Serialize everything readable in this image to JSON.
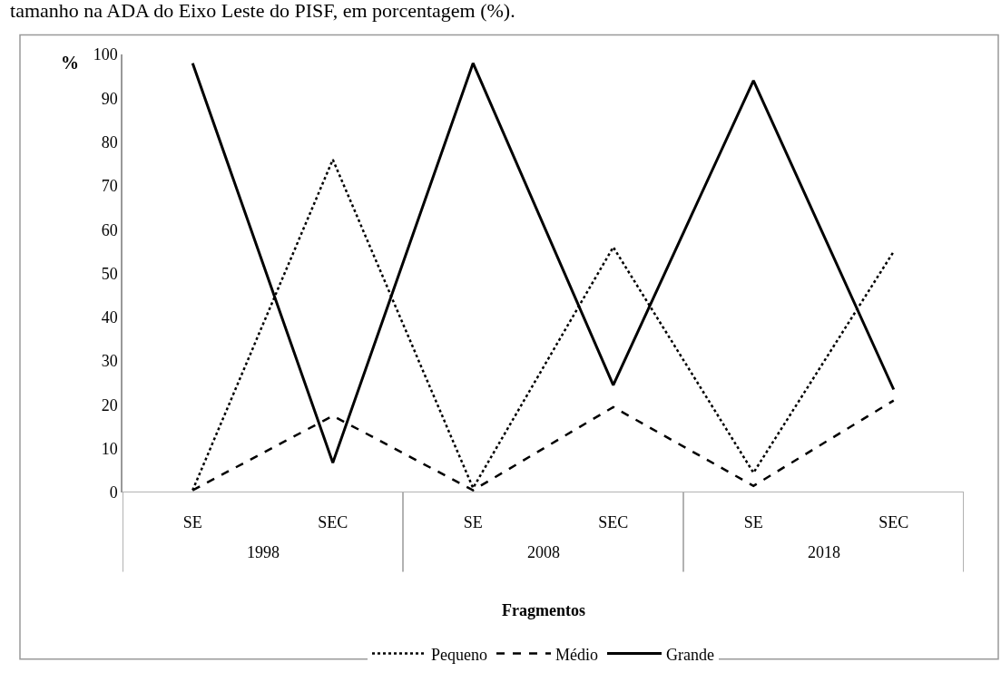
{
  "chart_data": {
    "type": "line",
    "title": "tamanho na ADA do Eixo Leste do PISF, em porcentagem (%).",
    "xlabel": "Fragmentos",
    "ylabel": "%",
    "categories": [
      "SE",
      "SEC",
      "SE",
      "SEC",
      "SE",
      "SEC"
    ],
    "annotations": [
      "1998",
      "2008",
      "2018"
    ],
    "series": [
      {
        "name": "Pequeno",
        "color": "#000000",
        "line_style": "dotted",
        "values": [
          0.5,
          76,
          1,
          56,
          4.5,
          55
        ]
      },
      {
        "name": "Médio",
        "color": "#000000",
        "line_style": "dashed",
        "values": [
          0.5,
          17.5,
          0.5,
          19.5,
          1.5,
          21
        ]
      },
      {
        "name": "Grande",
        "color": "#000000",
        "line_style": "solid",
        "values": [
          98,
          6.8,
          98,
          24.5,
          94,
          23.5
        ]
      }
    ],
    "ylim": [
      0,
      100
    ],
    "yticks": [
      0,
      10,
      20,
      30,
      40,
      50,
      60,
      70,
      80,
      90,
      100
    ],
    "legend": "bottom",
    "marker": "none"
  }
}
